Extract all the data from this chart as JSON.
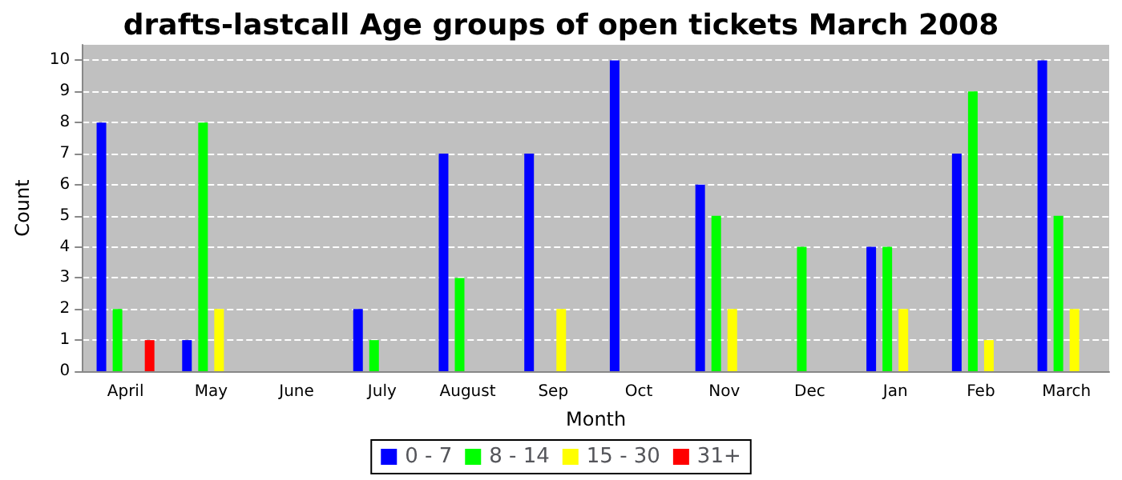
{
  "chart_data": {
    "type": "bar",
    "title": "drafts-lastcall Age groups of open tickets March 2008",
    "xlabel": "Month",
    "ylabel": "Count",
    "categories": [
      "April",
      "May",
      "June",
      "July",
      "August",
      "Sep",
      "Oct",
      "Nov",
      "Dec",
      "Jan",
      "Feb",
      "March"
    ],
    "series": [
      {
        "name": "0 - 7",
        "color": "#0000ff",
        "values": [
          8,
          1,
          0,
          2,
          7,
          7,
          10,
          6,
          0,
          4,
          7,
          10
        ]
      },
      {
        "name": "8 - 14",
        "color": "#00ff00",
        "values": [
          2,
          8,
          0,
          1,
          3,
          0,
          0,
          5,
          4,
          4,
          9,
          5
        ]
      },
      {
        "name": "15 - 30",
        "color": "#ffff00",
        "values": [
          0,
          2,
          0,
          0,
          0,
          2,
          0,
          2,
          0,
          2,
          1,
          2
        ]
      },
      {
        "name": "31+",
        "color": "#ff0000",
        "values": [
          1,
          0,
          0,
          0,
          0,
          0,
          0,
          0,
          0,
          0,
          0,
          0
        ]
      }
    ],
    "ylim": [
      0,
      10.5
    ],
    "yticks": [
      0,
      1,
      2,
      3,
      4,
      5,
      6,
      7,
      8,
      9,
      10
    ],
    "grid": "y",
    "legend": "bottom"
  }
}
